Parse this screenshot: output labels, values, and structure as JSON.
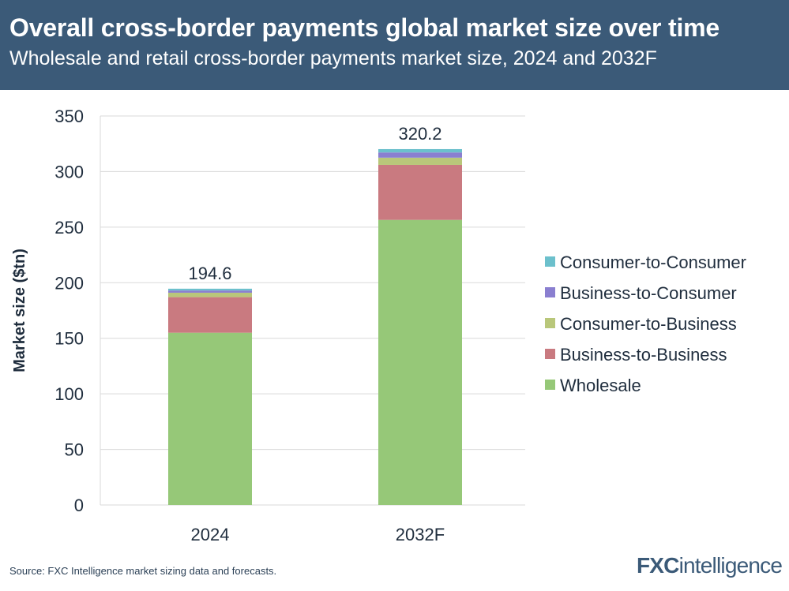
{
  "header": {
    "title": "Overall cross-border payments global market size over time",
    "subtitle": "Wholesale and retail cross-border payments market size, 2024 and 2032F"
  },
  "footer": {
    "source": "Source: FXC Intelligence market sizing data and forecasts.",
    "logo_fxc": "FXC",
    "logo_intelligence": "intelligence"
  },
  "chart_data": {
    "type": "bar",
    "stacked": true,
    "title": "Overall cross-border payments global market size over time",
    "subtitle": "Wholesale and retail cross-border payments market size, 2024 and 2032F",
    "xlabel": "",
    "ylabel": "Market size ($tn)",
    "ylim": [
      0,
      350
    ],
    "yticks": [
      0,
      50,
      100,
      150,
      200,
      250,
      300,
      350
    ],
    "grid": true,
    "legend_position": "right",
    "categories": [
      "2024",
      "2032F"
    ],
    "totals": [
      "194.6",
      "320.2"
    ],
    "series": [
      {
        "name": "Wholesale",
        "color": "#96c878",
        "values": [
          155.0,
          256.5
        ]
      },
      {
        "name": "Business-to-Business",
        "color": "#c97a80",
        "values": [
          32.0,
          49.5
        ]
      },
      {
        "name": "Consumer-to-Business",
        "color": "#b9c77a",
        "values": [
          4.0,
          6.5
        ]
      },
      {
        "name": "Business-to-Consumer",
        "color": "#8a7fd0",
        "values": [
          2.0,
          4.7
        ]
      },
      {
        "name": "Consumer-to-Consumer",
        "color": "#6cc0cc",
        "values": [
          1.6,
          3.0
        ]
      }
    ]
  }
}
